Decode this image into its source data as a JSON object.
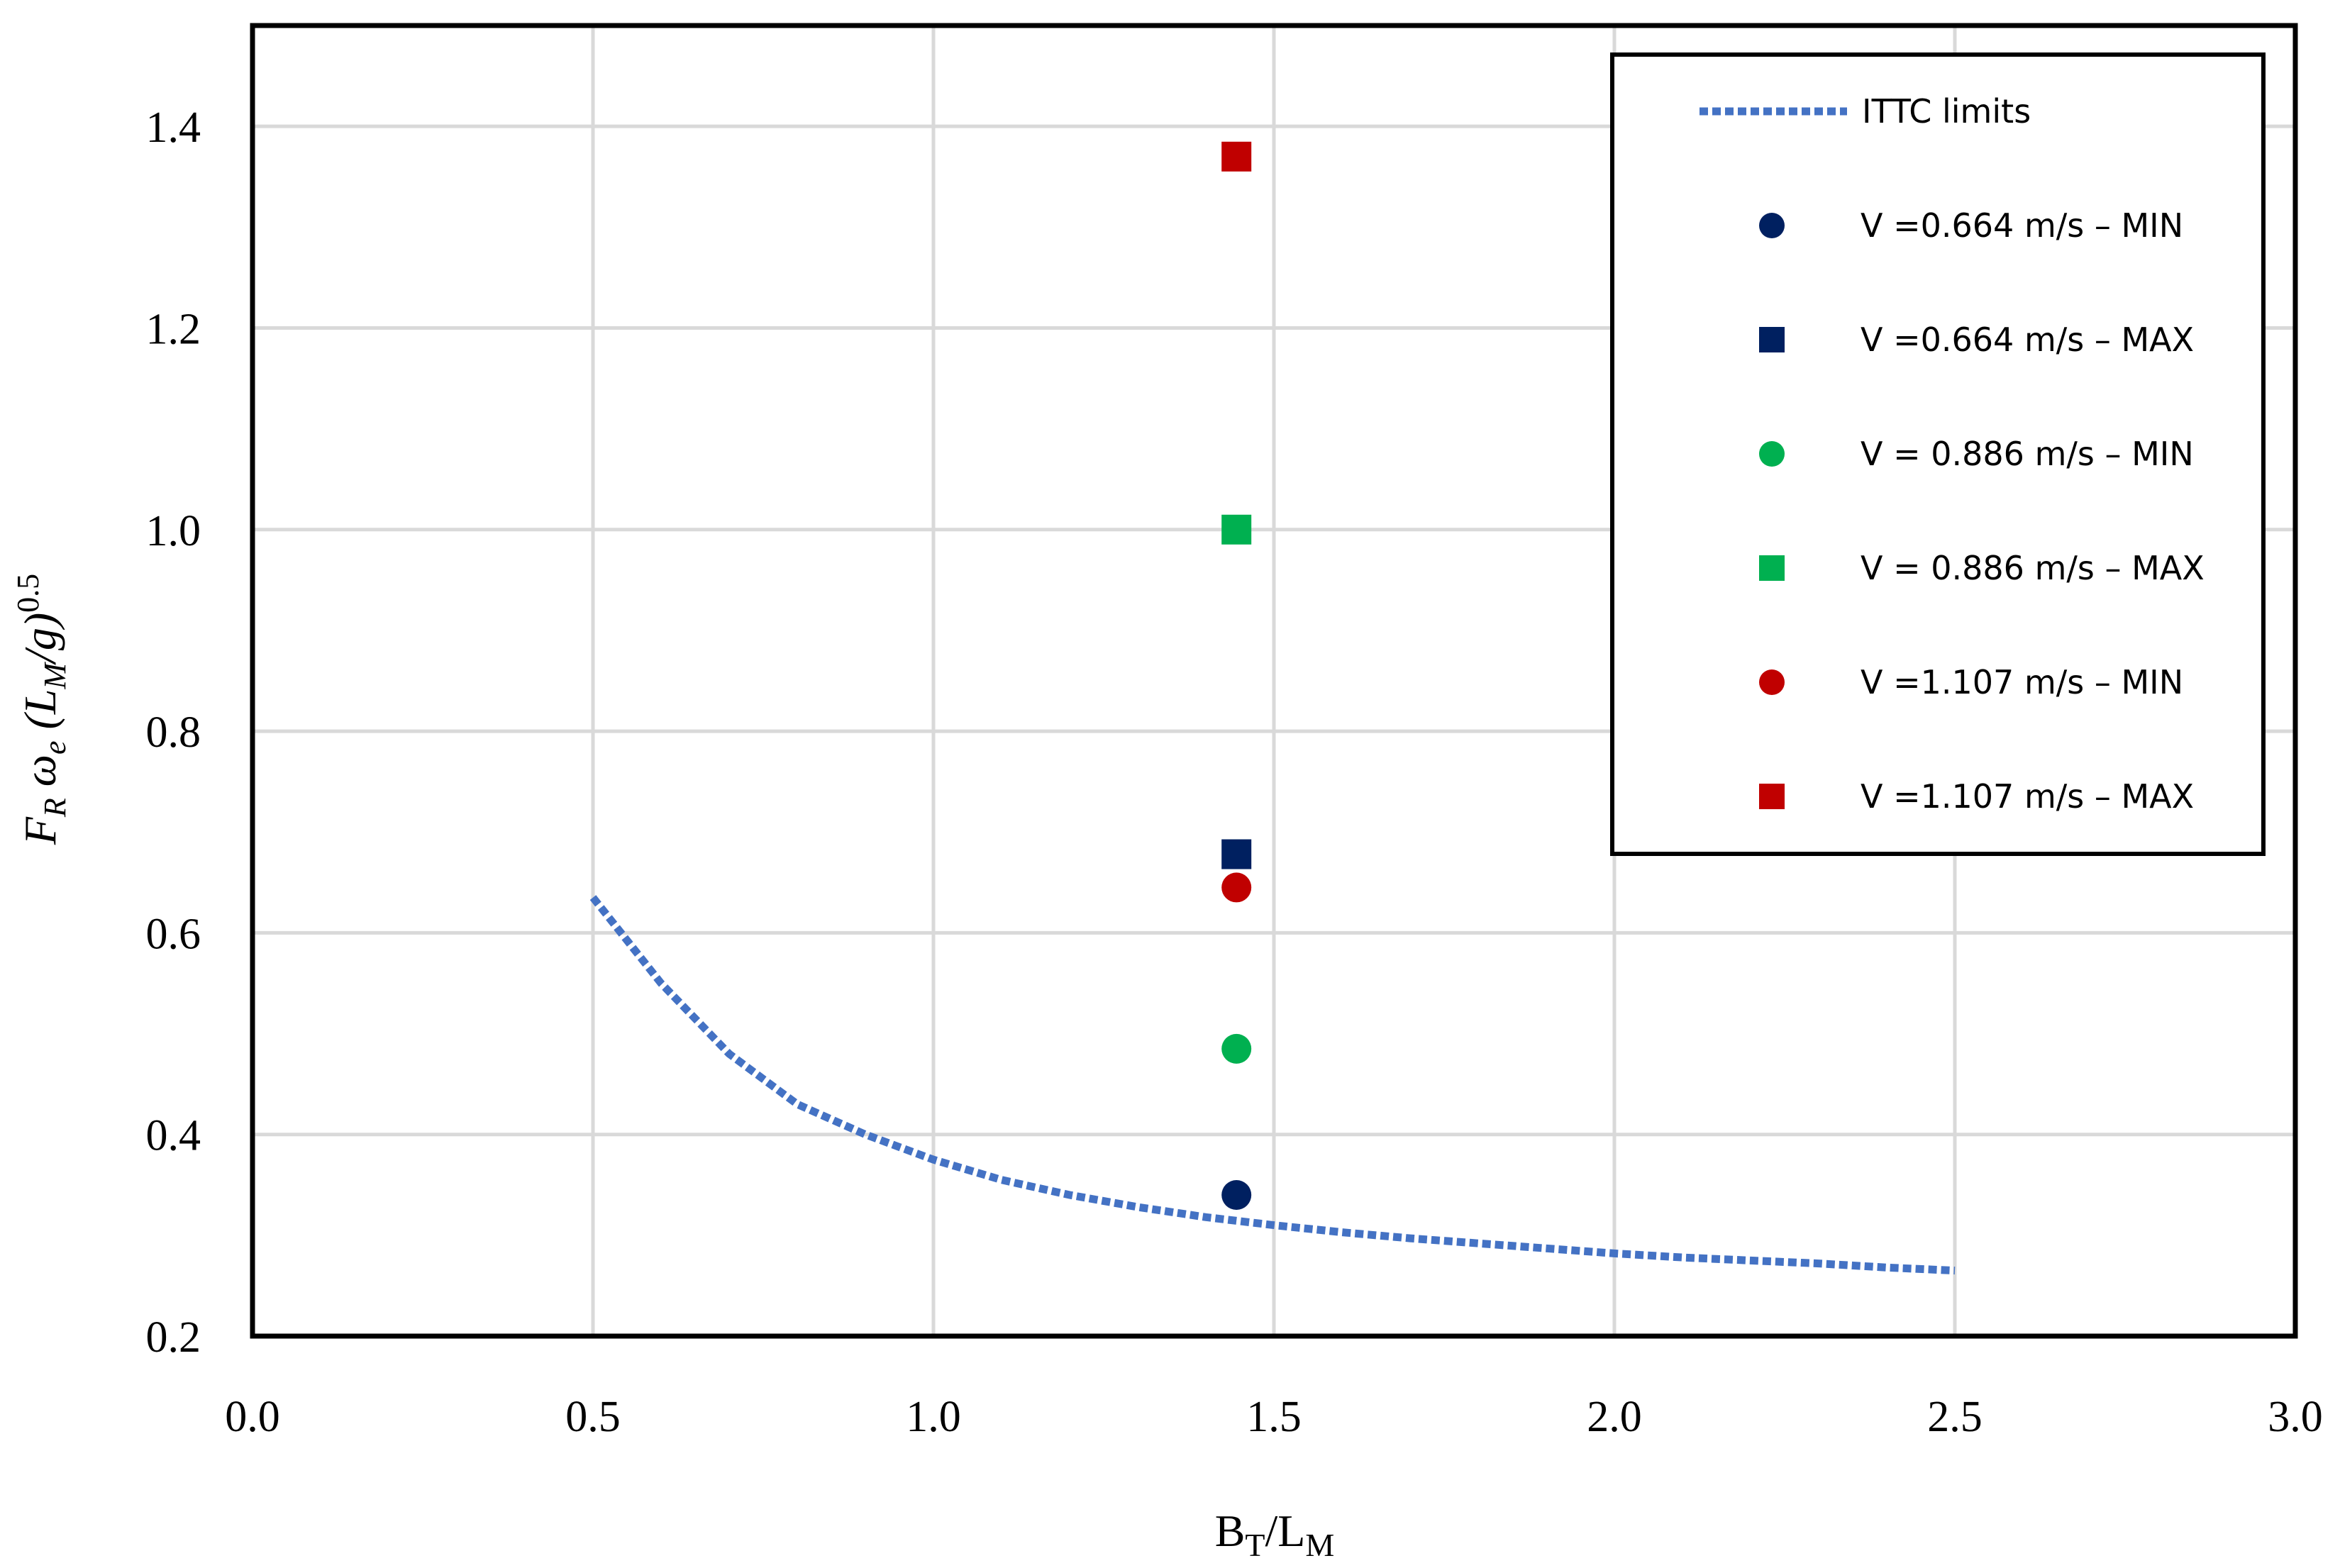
{
  "chart_data": {
    "type": "scatter",
    "title": "",
    "xlabel": {
      "base": "B",
      "sub1": "T",
      "sep": "/L",
      "sub2": "M"
    },
    "ylabel": {
      "part1": "F",
      "sub1": "R",
      "part2": " ω",
      "sub2": "e",
      "part3": " (L",
      "sub3": "M",
      "part4": "/g)",
      "sup": "0.5"
    },
    "xlim": [
      0.0,
      3.0
    ],
    "ylim": [
      0.2,
      1.5
    ],
    "xticks": [
      0.0,
      0.5,
      1.0,
      1.5,
      2.0,
      2.5,
      3.0
    ],
    "xtick_labels": [
      "0.0",
      "0.5",
      "1.0",
      "1.5",
      "2.0",
      "2.5",
      "3.0"
    ],
    "yticks": [
      0.2,
      0.4,
      0.6,
      0.8,
      1.0,
      1.2,
      1.4
    ],
    "ytick_labels": [
      "0.2",
      "0.4",
      "0.6",
      "0.8",
      "1.0",
      "1.2",
      "1.4"
    ],
    "grid": true,
    "legend_position": "top-right",
    "series": [
      {
        "name": "ITTC limits",
        "kind": "line-dotted",
        "color": "#4472C4",
        "x": [
          0.5,
          0.6,
          0.7,
          0.8,
          0.9,
          1.0,
          1.1,
          1.2,
          1.3,
          1.4,
          1.5,
          1.6,
          1.7,
          1.8,
          1.9,
          2.0,
          2.1,
          2.2,
          2.3,
          2.4,
          2.5
        ],
        "y": [
          0.635,
          0.55,
          0.48,
          0.43,
          0.4,
          0.375,
          0.355,
          0.34,
          0.328,
          0.318,
          0.31,
          0.303,
          0.297,
          0.292,
          0.287,
          0.282,
          0.278,
          0.275,
          0.272,
          0.268,
          0.265
        ]
      },
      {
        "name": "V =0.664 m/s – MIN",
        "kind": "circle",
        "color": "#002060",
        "x": [
          1.445
        ],
        "y": [
          0.34
        ]
      },
      {
        "name": "V =0.664 m/s – MAX",
        "kind": "square",
        "color": "#002060",
        "x": [
          1.445
        ],
        "y": [
          0.678
        ]
      },
      {
        "name": "V = 0.886 m/s – MIN",
        "kind": "circle",
        "color": "#00B050",
        "x": [
          1.445
        ],
        "y": [
          0.485
        ]
      },
      {
        "name": "V = 0.886 m/s – MAX",
        "kind": "square",
        "color": "#00B050",
        "x": [
          1.445
        ],
        "y": [
          1.0
        ]
      },
      {
        "name": "V =1.107 m/s – MIN",
        "kind": "circle",
        "color": "#C00000",
        "x": [
          1.445
        ],
        "y": [
          0.645
        ]
      },
      {
        "name": "V =1.107 m/s – MAX",
        "kind": "square",
        "color": "#C00000",
        "x": [
          1.445
        ],
        "y": [
          1.37
        ]
      }
    ]
  }
}
